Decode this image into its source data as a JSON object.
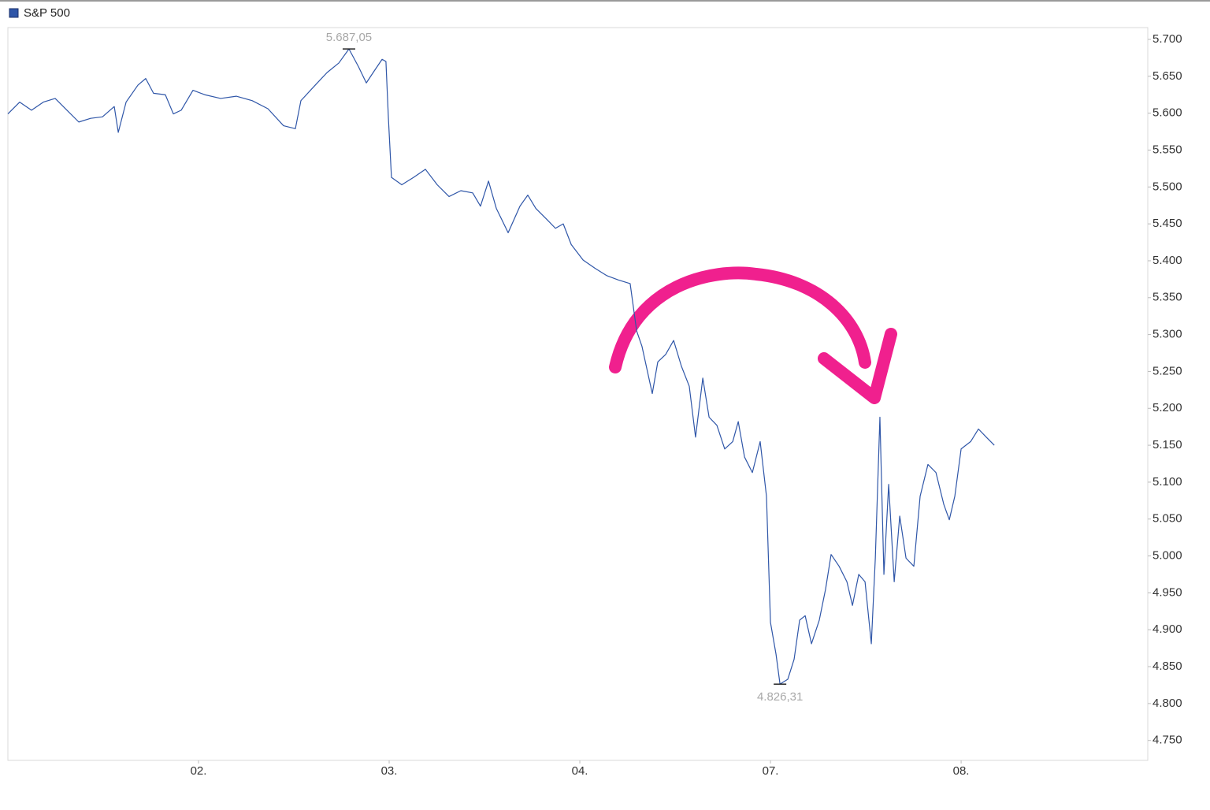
{
  "chart_data": {
    "type": "line",
    "xlim": [
      0,
      5.979
    ],
    "ylim": [
      4723,
      5716
    ],
    "xticks": [
      {
        "value": 1,
        "label": "02."
      },
      {
        "value": 2,
        "label": "03."
      },
      {
        "value": 3,
        "label": "04."
      },
      {
        "value": 4,
        "label": "07."
      },
      {
        "value": 5,
        "label": "08."
      }
    ],
    "yticks": [
      {
        "value": 4750,
        "label": "4.750"
      },
      {
        "value": 4800,
        "label": "4.800"
      },
      {
        "value": 4850,
        "label": "4.850"
      },
      {
        "value": 4900,
        "label": "4.900"
      },
      {
        "value": 4950,
        "label": "4.950"
      },
      {
        "value": 5000,
        "label": "5.000"
      },
      {
        "value": 5050,
        "label": "5.050"
      },
      {
        "value": 5100,
        "label": "5.100"
      },
      {
        "value": 5150,
        "label": "5.150"
      },
      {
        "value": 5200,
        "label": "5.200"
      },
      {
        "value": 5250,
        "label": "5.250"
      },
      {
        "value": 5300,
        "label": "5.300"
      },
      {
        "value": 5350,
        "label": "5.350"
      },
      {
        "value": 5400,
        "label": "5.400"
      },
      {
        "value": 5450,
        "label": "5.450"
      },
      {
        "value": 5500,
        "label": "5.500"
      },
      {
        "value": 5550,
        "label": "5.550"
      },
      {
        "value": 5600,
        "label": "5.600"
      },
      {
        "value": 5650,
        "label": "5.650"
      },
      {
        "value": 5700,
        "label": "5.700"
      }
    ],
    "x": [
      0,
      0.062,
      0.124,
      0.186,
      0.248,
      0.31,
      0.372,
      0.434,
      0.496,
      0.558,
      0.579,
      0.62,
      0.682,
      0.723,
      0.764,
      0.826,
      0.868,
      0.909,
      0.971,
      1.033,
      1.116,
      1.198,
      1.281,
      1.364,
      1.446,
      1.508,
      1.537,
      1.612,
      1.674,
      1.736,
      1.789,
      1.839,
      1.88,
      1.921,
      1.963,
      1.983,
      1.996,
      2.012,
      2.066,
      2.128,
      2.19,
      2.252,
      2.314,
      2.376,
      2.438,
      2.479,
      2.521,
      2.562,
      2.624,
      2.686,
      2.727,
      2.769,
      2.831,
      2.872,
      2.913,
      2.955,
      3.017,
      3.079,
      3.14,
      3.202,
      3.264,
      3.298,
      3.326,
      3.38,
      3.409,
      3.45,
      3.492,
      3.533,
      3.574,
      3.607,
      3.645,
      3.678,
      3.719,
      3.76,
      3.802,
      3.831,
      3.864,
      3.905,
      3.946,
      3.979,
      4,
      4.029,
      4.05,
      4.091,
      4.124,
      4.153,
      4.182,
      4.215,
      4.256,
      4.289,
      4.318,
      4.36,
      4.401,
      4.43,
      4.463,
      4.496,
      4.529,
      4.55,
      4.574,
      4.595,
      4.62,
      4.649,
      4.678,
      4.711,
      4.752,
      4.785,
      4.826,
      4.868,
      4.909,
      4.938,
      4.967,
      5,
      5.05,
      5.091,
      5.132,
      5.174
    ],
    "series": [
      {
        "name": "S&P 500",
        "color": "#2f56a8",
        "values": [
          5599,
          5615,
          5604,
          5615,
          5620,
          5604,
          5588,
          5593,
          5595,
          5609,
          5574,
          5615,
          5638,
          5647,
          5627,
          5625,
          5599,
          5604,
          5631,
          5625,
          5620,
          5623,
          5617,
          5606,
          5583,
          5579,
          5617,
          5638,
          5655,
          5668,
          5687.05,
          5663,
          5641,
          5657,
          5673,
          5670,
          5593,
          5513,
          5503,
          5513,
          5524,
          5503,
          5487,
          5495,
          5492,
          5474,
          5508,
          5471,
          5438,
          5474,
          5489,
          5471,
          5455,
          5444,
          5450,
          5422,
          5401,
          5390,
          5380,
          5374,
          5369,
          5305,
          5284,
          5220,
          5263,
          5273,
          5292,
          5257,
          5230,
          5161,
          5241,
          5188,
          5177,
          5145,
          5155,
          5182,
          5134,
          5113,
          5155,
          5081,
          4910,
          4867,
          4826.31,
          4833,
          4860,
          4913,
          4919,
          4881,
          4913,
          4955,
          5002,
          4986,
          4965,
          4933,
          4975,
          4965,
          4881,
          4997,
          5188,
          4975,
          5097,
          4965,
          5054,
          4997,
          4986,
          5081,
          5124,
          5113,
          5070,
          5049,
          5081,
          5145,
          5155,
          5172,
          5161,
          5150
        ]
      }
    ],
    "annotations": [
      {
        "text": "5.687,05",
        "x": 1.789,
        "y": 5687.05
      },
      {
        "text": "4.826,31",
        "x": 4.05,
        "y": 4826.31
      }
    ]
  }
}
